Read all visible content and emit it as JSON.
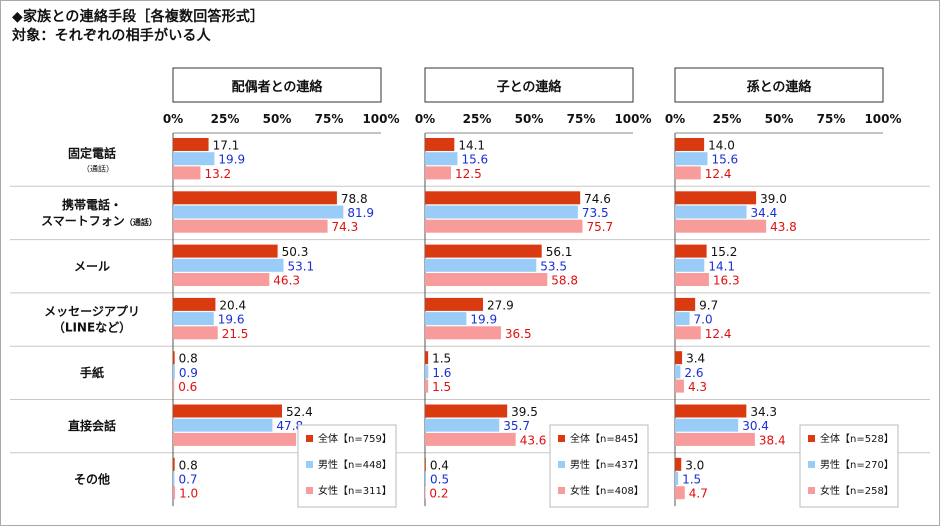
{
  "header": {
    "title": "◆家族との連絡手段［各複数回答形式］",
    "subtitle": "対象：それぞれの相手がいる人"
  },
  "colors": {
    "all": "#d93a10",
    "male": "#99ccf7",
    "female": "#f79b9b",
    "male_text": "#1a2fd6",
    "female_text": "#e01010",
    "all_text": "#111111"
  },
  "chart_data": {
    "type": "bar",
    "orientation": "horizontal",
    "xlim": [
      0,
      100
    ],
    "tick_labels": [
      "0%",
      "25%",
      "50%",
      "75%",
      "100%"
    ],
    "categories": [
      {
        "main": "固定電話",
        "sub": "（通話）"
      },
      {
        "main": "携帯電話・",
        "main2": "スマートフォン",
        "sub": "（通話）"
      },
      {
        "main": "メール",
        "sub": ""
      },
      {
        "main": "メッセージアプリ",
        "main2": "（LINEなど）",
        "sub": ""
      },
      {
        "main": "手紙",
        "sub": ""
      },
      {
        "main": "直接会話",
        "sub": ""
      },
      {
        "main": "その他",
        "sub": ""
      }
    ],
    "panels": [
      {
        "title": "配偶者との連絡",
        "series": [
          {
            "key": "all",
            "legend": "全体【n=759】",
            "values": [
              17.1,
              78.8,
              50.3,
              20.4,
              0.8,
              52.4,
              0.8
            ]
          },
          {
            "key": "male",
            "legend": "男性【n=448】",
            "values": [
              19.9,
              81.9,
              53.1,
              19.6,
              0.9,
              47.8,
              0.7
            ]
          },
          {
            "key": "female",
            "legend": "女性【n=311】",
            "values": [
              13.2,
              74.3,
              46.3,
              21.5,
              0.6,
              59.2,
              1.0
            ]
          }
        ]
      },
      {
        "title": "子との連絡",
        "series": [
          {
            "key": "all",
            "legend": "全体【n=845】",
            "values": [
              14.1,
              74.6,
              56.1,
              27.9,
              1.5,
              39.5,
              0.4
            ]
          },
          {
            "key": "male",
            "legend": "男性【n=437】",
            "values": [
              15.6,
              73.5,
              53.5,
              19.9,
              1.6,
              35.7,
              0.5
            ]
          },
          {
            "key": "female",
            "legend": "女性【n=408】",
            "values": [
              12.5,
              75.7,
              58.8,
              36.5,
              1.5,
              43.6,
              0.2
            ]
          }
        ]
      },
      {
        "title": "孫との連絡",
        "series": [
          {
            "key": "all",
            "legend": "全体【n=528】",
            "values": [
              14.0,
              39.0,
              15.2,
              9.7,
              3.4,
              34.3,
              3.0
            ]
          },
          {
            "key": "male",
            "legend": "男性【n=270】",
            "values": [
              15.6,
              34.4,
              14.1,
              7.0,
              2.6,
              30.4,
              1.5
            ]
          },
          {
            "key": "female",
            "legend": "女性【n=258】",
            "values": [
              12.4,
              43.8,
              16.3,
              12.4,
              4.3,
              38.4,
              4.7
            ]
          }
        ]
      }
    ]
  }
}
